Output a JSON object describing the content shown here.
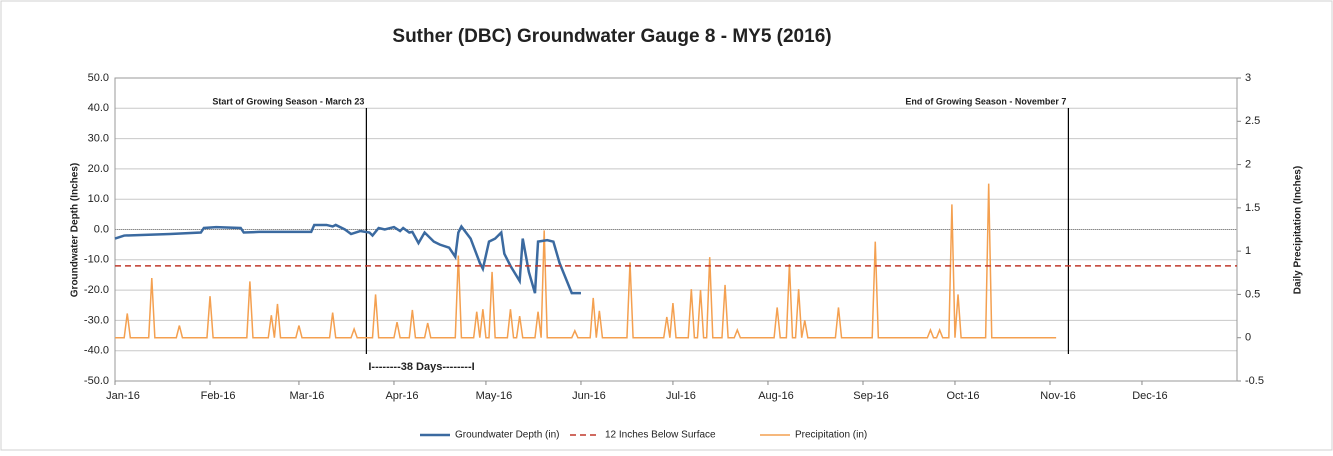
{
  "chart_data": {
    "type": "line",
    "title": "Suther (DBC) Groundwater Gauge 8 - MY5 (2016)",
    "y_label": "Groundwater Depth (Inches)",
    "y2_label": "Daily Precipitation (Inches)",
    "xlim": [
      0,
      366
    ],
    "xticks": [
      {
        "value": 0,
        "label": "Jan-16"
      },
      {
        "value": 31,
        "label": "Feb-16"
      },
      {
        "value": 60,
        "label": "Mar-16"
      },
      {
        "value": 91,
        "label": "Apr-16"
      },
      {
        "value": 121,
        "label": "May-16"
      },
      {
        "value": 152,
        "label": "Jun-16"
      },
      {
        "value": 182,
        "label": "Jul-16"
      },
      {
        "value": 213,
        "label": "Aug-16"
      },
      {
        "value": 244,
        "label": "Sep-16"
      },
      {
        "value": 274,
        "label": "Oct-16"
      },
      {
        "value": 305,
        "label": "Nov-16"
      },
      {
        "value": 335,
        "label": "Dec-16"
      }
    ],
    "ylim": [
      -50,
      50
    ],
    "yticks": [
      {
        "value": -50,
        "label": "-50.0"
      },
      {
        "value": -40,
        "label": "-40.0"
      },
      {
        "value": -30,
        "label": "-30.0"
      },
      {
        "value": -20,
        "label": "-20.0"
      },
      {
        "value": -10,
        "label": "-10.0"
      },
      {
        "value": 0,
        "label": "0.0"
      },
      {
        "value": 10,
        "label": "10.0"
      },
      {
        "value": 20,
        "label": "20.0"
      },
      {
        "value": 30,
        "label": "30.0"
      },
      {
        "value": 40,
        "label": "40.0"
      },
      {
        "value": 50,
        "label": "50.0"
      }
    ],
    "y2lim": [
      -0.5,
      3
    ],
    "y2ticks": [
      -0.5,
      0,
      0.5,
      1,
      1.5,
      2,
      2.5,
      3
    ],
    "grid": true,
    "legend": "bottom",
    "annotations": [
      {
        "x": 82,
        "label": "Start of Growing Season  - March 23"
      },
      {
        "x": 311,
        "label": "End of Growing Season  - November 7"
      }
    ],
    "span_label": "I--------38 Days--------I",
    "series": [
      {
        "name": "Groundwater Depth (in)",
        "color": "#3b6aa0",
        "style": "solid",
        "x": [
          0,
          3,
          18,
          28,
          29,
          33,
          41,
          42,
          47,
          64,
          65,
          69,
          71,
          72,
          75,
          77,
          80,
          83,
          84,
          86,
          88,
          91,
          93,
          94,
          96,
          97,
          99,
          101,
          104,
          106,
          109,
          111,
          112,
          113,
          116,
          119,
          120,
          122,
          124,
          126,
          127,
          129,
          132,
          133,
          135,
          137,
          138,
          141,
          143,
          145,
          147,
          149,
          152
        ],
        "values": [
          -3,
          -2,
          -1.5,
          -1,
          0.5,
          0.8,
          0.5,
          -1,
          -0.8,
          -0.8,
          1.5,
          1.5,
          1,
          1.5,
          0,
          -1.5,
          -0.5,
          -1,
          -2,
          0.5,
          0,
          0.8,
          -0.5,
          0.5,
          -1,
          -0.8,
          -4.5,
          -1,
          -4,
          -5,
          -6,
          -9,
          -1,
          1,
          -3,
          -11,
          -13,
          -4,
          -3,
          -1,
          -8,
          -12,
          -17,
          -3,
          -14,
          -21,
          -4,
          -3.5,
          -4,
          -11,
          -16,
          -21,
          -21
        ]
      },
      {
        "name": "12 Inches Below Surface",
        "color": "#c0392b",
        "style": "dashed",
        "x": [
          0,
          366
        ],
        "values": [
          -12,
          -12
        ]
      },
      {
        "name": "Precipitation (in)",
        "color": "#f4a050",
        "style": "solid",
        "axis": "y2",
        "x": [
          0,
          3,
          4,
          5,
          11,
          12,
          13,
          20,
          21,
          22,
          30,
          31,
          32,
          43,
          44,
          45,
          50,
          51,
          52,
          53,
          54,
          59,
          60,
          61,
          70,
          71,
          72,
          77,
          78,
          79,
          84,
          85,
          86,
          91,
          92,
          93,
          96,
          97,
          98,
          101,
          102,
          103,
          111,
          112,
          113,
          117,
          118,
          119,
          120,
          121,
          122,
          123,
          124,
          128,
          129,
          130,
          131,
          132,
          133,
          137,
          138,
          139,
          140,
          141,
          149,
          150,
          151,
          155,
          156,
          157,
          158,
          159,
          167,
          168,
          169,
          179,
          180,
          181,
          182,
          183,
          187,
          188,
          189,
          190,
          191,
          192,
          193,
          194,
          195,
          198,
          199,
          200,
          202,
          203,
          204,
          215,
          216,
          217,
          219,
          220,
          221,
          222,
          223,
          224,
          225,
          226,
          235,
          236,
          237,
          247,
          248,
          249,
          265,
          266,
          267,
          268,
          269,
          270,
          272,
          273,
          274,
          275,
          276,
          284,
          285,
          286,
          307
        ],
        "values": [
          0,
          0,
          0.28,
          0,
          0,
          0.69,
          0,
          0,
          0.14,
          0,
          0,
          0.48,
          0,
          0,
          0.65,
          0,
          0,
          0.26,
          0,
          0.39,
          0,
          0,
          0.14,
          0,
          0,
          0.29,
          0,
          0,
          0.1,
          0,
          0,
          0.5,
          0,
          0,
          0.18,
          0,
          0,
          0.32,
          0,
          0,
          0.17,
          0,
          0,
          0.95,
          0,
          0,
          0.3,
          0,
          0.33,
          0,
          0,
          0.76,
          0,
          0,
          0.33,
          0,
          0,
          0.25,
          0,
          0,
          0.3,
          0,
          1.24,
          0,
          0,
          0.08,
          0,
          0,
          0.46,
          0,
          0.31,
          0,
          0,
          0.87,
          0,
          0,
          0.24,
          0,
          0.4,
          0,
          0,
          0.56,
          0,
          0,
          0.55,
          0,
          0,
          0.93,
          0,
          0,
          0.61,
          0,
          0,
          0.09,
          0,
          0,
          0.35,
          0,
          0,
          0.85,
          0,
          0,
          0.56,
          0,
          0.2,
          0,
          0,
          0.35,
          0,
          0,
          1.11,
          0,
          0,
          0.09,
          0,
          0,
          0.09,
          0,
          0,
          1.54,
          0,
          0.5,
          0,
          0,
          1.78,
          0,
          0
        ]
      }
    ]
  }
}
